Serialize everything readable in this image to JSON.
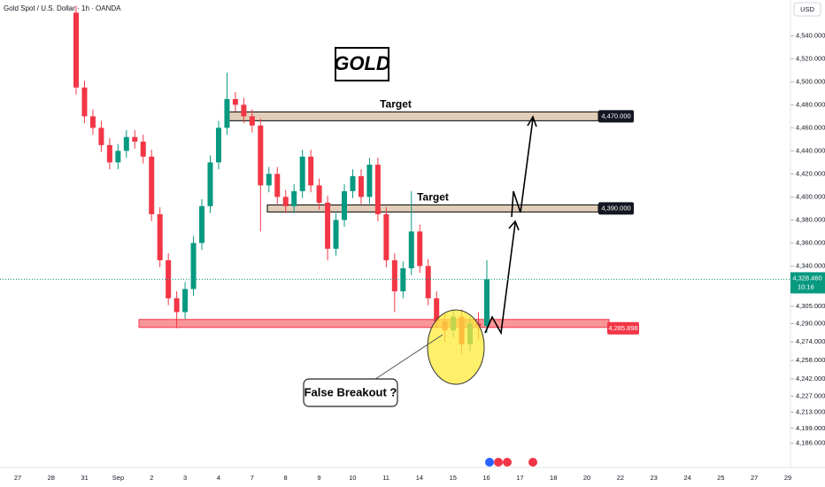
{
  "chart_data": {
    "type": "candlestick",
    "header": "Gold Spot / U.S. Dollar · 1h · OANDA",
    "title": "GOLD",
    "currency": "USD",
    "x_labels": [
      "27",
      "28",
      "31",
      "Sep",
      "2",
      "3",
      "4",
      "7",
      "8",
      "9",
      "10",
      "11",
      "14",
      "15",
      "16",
      "17",
      "18",
      "20",
      "22",
      "23",
      "24",
      "25",
      "27",
      "29"
    ],
    "open": [
      4560,
      4495,
      4470,
      4460,
      4445,
      4430,
      4440,
      4452,
      4448,
      4435,
      4385,
      4345,
      4312,
      4300,
      4320,
      4360,
      4392,
      4430,
      4460,
      4485,
      4480,
      4470,
      4462,
      4410,
      4420,
      4400,
      4392,
      4405,
      4435,
      4410,
      4395,
      4355,
      4380,
      4405,
      4418,
      4400,
      4428,
      4385,
      4345,
      4318,
      4338,
      4370,
      4340,
      4312,
      4292,
      4284,
      4296,
      4272,
      4290,
      4288
    ],
    "high": [
      4566,
      4501,
      4476,
      4466,
      4451,
      4446,
      4458,
      4458,
      4454,
      4441,
      4391,
      4351,
      4318,
      4326,
      4366,
      4398,
      4436,
      4466,
      4508,
      4491,
      4486,
      4476,
      4468,
      4426,
      4426,
      4406,
      4411,
      4441,
      4441,
      4416,
      4401,
      4386,
      4411,
      4424,
      4424,
      4434,
      4434,
      4391,
      4351,
      4344,
      4405,
      4376,
      4346,
      4318,
      4298,
      4302,
      4302,
      4296,
      4300,
      4345
    ],
    "low": [
      4489,
      4464,
      4454,
      4439,
      4424,
      4424,
      4434,
      4442,
      4429,
      4379,
      4339,
      4306,
      4286,
      4294,
      4314,
      4354,
      4386,
      4424,
      4454,
      4474,
      4464,
      4456,
      4370,
      4404,
      4394,
      4386,
      4386,
      4399,
      4404,
      4389,
      4345,
      4349,
      4374,
      4399,
      4394,
      4394,
      4379,
      4339,
      4300,
      4312,
      4332,
      4334,
      4306,
      4286,
      4274,
      4278,
      4264,
      4266,
      4276,
      4282
    ],
    "close": [
      4495,
      4470,
      4460,
      4445,
      4430,
      4440,
      4452,
      4448,
      4435,
      4385,
      4345,
      4312,
      4300,
      4320,
      4360,
      4392,
      4430,
      4460,
      4485,
      4480,
      4470,
      4462,
      4410,
      4420,
      4400,
      4392,
      4405,
      4435,
      4410,
      4395,
      4355,
      4380,
      4405,
      4418,
      4400,
      4428,
      4385,
      4345,
      4318,
      4338,
      4370,
      4340,
      4312,
      4292,
      4284,
      4296,
      4272,
      4290,
      4288,
      4328.46
    ],
    "up_color": "#089981",
    "down_color": "#f23645",
    "ylim": [
      4165,
      4571
    ],
    "yticks": [
      {
        "value": 4540,
        "label": "4,540.000"
      },
      {
        "value": 4520,
        "label": "4,520.000"
      },
      {
        "value": 4500,
        "label": "4,500.000"
      },
      {
        "value": 4480,
        "label": "4,480.000"
      },
      {
        "value": 4460,
        "label": "4,460.000"
      },
      {
        "value": 4440,
        "label": "4,440.000"
      },
      {
        "value": 4420,
        "label": "4,420.000"
      },
      {
        "value": 4400,
        "label": "4,400.000"
      },
      {
        "value": 4380,
        "label": "4,380.000"
      },
      {
        "value": 4360,
        "label": "4,360.000"
      },
      {
        "value": 4340,
        "label": "4,340.000"
      },
      {
        "value": 4305,
        "label": "4,305.000"
      },
      {
        "value": 4290,
        "label": "4,290.000"
      },
      {
        "value": 4274,
        "label": "4,274.000"
      },
      {
        "value": 4258,
        "label": "4,258.000"
      },
      {
        "value": 4242,
        "label": "4,242.000"
      },
      {
        "value": 4227,
        "label": "4,227.000"
      },
      {
        "value": 4213,
        "label": "4,213.000"
      },
      {
        "value": 4199,
        "label": "4,199.000"
      },
      {
        "value": 4186,
        "label": "4,186.000"
      }
    ],
    "targets": [
      {
        "name": "Target",
        "level": {
          "value": 4470,
          "label": "4,470.000"
        }
      },
      {
        "name": "Target",
        "level": {
          "value": 4390,
          "label": "4,390.000"
        }
      }
    ],
    "support": {
      "value": 4285.898,
      "label": "4,285.898"
    },
    "last_price": {
      "value": 4328.46,
      "label": "4,328.460"
    },
    "countdown": "10:16",
    "annotation": "False Breakout ?"
  }
}
